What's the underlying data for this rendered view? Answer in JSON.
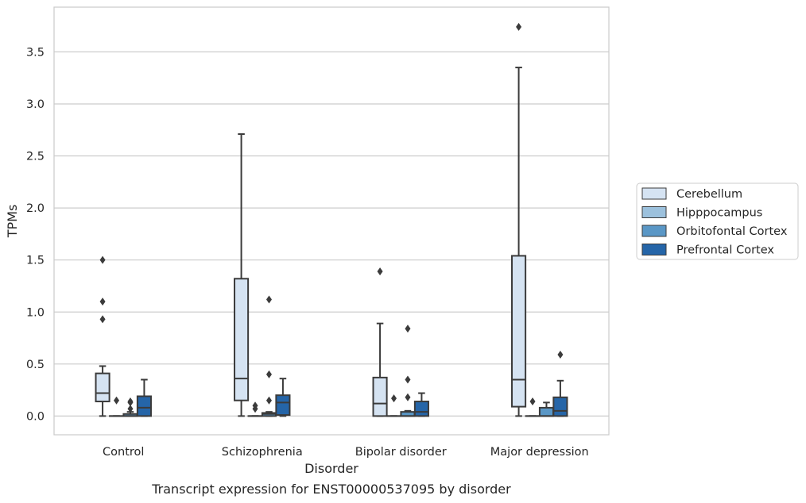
{
  "chart_data": {
    "type": "box",
    "xlabel": "Disorder",
    "ylabel": "TPMs",
    "caption": "Transcript expression for ENST00000537095 by disorder",
    "ylim": [
      -0.18,
      3.93
    ],
    "yticks": [
      "0.0",
      "0.5",
      "1.0",
      "1.5",
      "2.0",
      "2.5",
      "3.0",
      "3.5"
    ],
    "ytick_values": [
      0.0,
      0.5,
      1.0,
      1.5,
      2.0,
      2.5,
      3.0,
      3.5
    ],
    "grid": "horizontal",
    "legend_placement": "right",
    "categories": [
      "Control",
      "Schizophrenia",
      "Bipolar disorder",
      "Major depression"
    ],
    "series": [
      {
        "name": "Cerebellum",
        "color": "#d5e3f2",
        "boxes": [
          {
            "q1": 0.14,
            "median": 0.22,
            "q3": 0.41,
            "whisker_low": 0.0,
            "whisker_high": 0.48,
            "outliers": [
              0.93,
              1.1,
              1.5
            ]
          },
          {
            "q1": 0.15,
            "median": 0.36,
            "q3": 1.32,
            "whisker_low": 0.0,
            "whisker_high": 2.71,
            "outliers": []
          },
          {
            "q1": 0.0,
            "median": 0.12,
            "q3": 0.37,
            "whisker_low": 0.0,
            "whisker_high": 0.89,
            "outliers": [
              1.39
            ]
          },
          {
            "q1": 0.09,
            "median": 0.35,
            "q3": 1.54,
            "whisker_low": 0.0,
            "whisker_high": 3.35,
            "outliers": [
              3.74
            ]
          }
        ]
      },
      {
        "name": "Hipppocampus",
        "color": "#9cc1dd",
        "boxes": [
          {
            "q1": 0.0,
            "median": 0.0,
            "q3": 0.0,
            "whisker_low": 0.0,
            "whisker_high": 0.0,
            "outliers": [
              0.15
            ]
          },
          {
            "q1": 0.0,
            "median": 0.0,
            "q3": 0.0,
            "whisker_low": 0.0,
            "whisker_high": 0.0,
            "outliers": [
              0.07,
              0.1
            ]
          },
          {
            "q1": 0.0,
            "median": 0.0,
            "q3": 0.0,
            "whisker_low": 0.0,
            "whisker_high": 0.0,
            "outliers": [
              0.17
            ]
          },
          {
            "q1": 0.0,
            "median": 0.0,
            "q3": 0.0,
            "whisker_low": 0.0,
            "whisker_high": 0.0,
            "outliers": [
              0.14
            ]
          }
        ]
      },
      {
        "name": "Orbitofontal Cortex",
        "color": "#5a97c6",
        "boxes": [
          {
            "q1": 0.0,
            "median": 0.0,
            "q3": 0.02,
            "whisker_low": 0.0,
            "whisker_high": 0.04,
            "outliers": [
              0.07,
              0.13,
              0.14
            ]
          },
          {
            "q1": 0.0,
            "median": 0.02,
            "q3": 0.03,
            "whisker_low": 0.0,
            "whisker_high": 0.04,
            "outliers": [
              0.15,
              0.4,
              1.12
            ]
          },
          {
            "q1": 0.0,
            "median": 0.0,
            "q3": 0.04,
            "whisker_low": 0.0,
            "whisker_high": 0.05,
            "outliers": [
              0.18,
              0.35,
              0.84
            ]
          },
          {
            "q1": 0.0,
            "median": 0.0,
            "q3": 0.08,
            "whisker_low": 0.0,
            "whisker_high": 0.13,
            "outliers": []
          }
        ]
      },
      {
        "name": "Prefrontal Cortex",
        "color": "#2565a8",
        "boxes": [
          {
            "q1": 0.0,
            "median": 0.08,
            "q3": 0.19,
            "whisker_low": 0.0,
            "whisker_high": 0.35,
            "outliers": []
          },
          {
            "q1": 0.01,
            "median": 0.13,
            "q3": 0.2,
            "whisker_low": 0.0,
            "whisker_high": 0.36,
            "outliers": []
          },
          {
            "q1": 0.0,
            "median": 0.04,
            "q3": 0.14,
            "whisker_low": 0.0,
            "whisker_high": 0.22,
            "outliers": []
          },
          {
            "q1": 0.0,
            "median": 0.05,
            "q3": 0.18,
            "whisker_low": 0.0,
            "whisker_high": 0.34,
            "outliers": [
              0.59
            ]
          }
        ]
      }
    ]
  }
}
